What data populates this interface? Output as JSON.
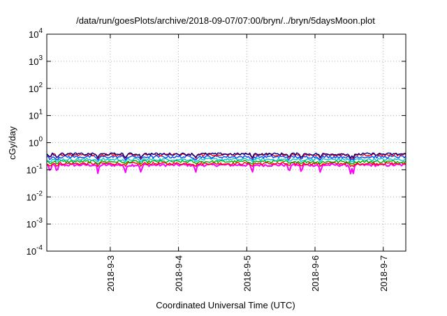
{
  "chart_data": {
    "type": "line",
    "title": "/data/run/goesPlots/archive/2018-09-07/07:00/bryn/../bryn/5daysMoon.plot",
    "xlabel": "Coordinated Universal Time (UTC)",
    "ylabel": "cGy/day",
    "yscale": "log",
    "ylim": [
      0.0001,
      10000
    ],
    "xlim": [
      2.07,
      7.33
    ],
    "x_unit": "day of September 2018",
    "grid": true,
    "xticks": [
      {
        "x": 3,
        "label": "2018-9-3"
      },
      {
        "x": 4,
        "label": "2018-9-4"
      },
      {
        "x": 5,
        "label": "2018-9-5"
      },
      {
        "x": 6,
        "label": "2018-9-6"
      },
      {
        "x": 7,
        "label": "2018-9-7"
      }
    ],
    "yticks": [
      {
        "v": 0.0001,
        "base": "10",
        "exp": "-4"
      },
      {
        "v": 0.001,
        "base": "10",
        "exp": "-3"
      },
      {
        "v": 0.01,
        "base": "10",
        "exp": "-2"
      },
      {
        "v": 0.1,
        "base": "10",
        "exp": "-1"
      },
      {
        "v": 1,
        "base": "10",
        "exp": "0"
      },
      {
        "v": 10,
        "base": "10",
        "exp": "1"
      },
      {
        "v": 100,
        "base": "10",
        "exp": "2"
      },
      {
        "v": 1000,
        "base": "10",
        "exp": "3"
      },
      {
        "v": 10000,
        "base": "10",
        "exp": "4"
      }
    ],
    "series": [
      {
        "color": "#ff00ff",
        "level": 0.15,
        "dip_to": 0.07
      },
      {
        "color": "#ff0000",
        "level": 0.17,
        "dip_to": 0.13
      },
      {
        "color": "#00aa00",
        "level": 0.2,
        "dip_to": 0.16
      },
      {
        "color": "#00c8c8",
        "level": 0.24,
        "dip_to": 0.19
      },
      {
        "color": "#0044ff",
        "level": 0.3,
        "dip_to": 0.22
      },
      {
        "color": "#ff0000",
        "level": 0.36,
        "dip_to": 0.25
      },
      {
        "color": "#000088",
        "level": 0.38,
        "dip_to": 0.27
      }
    ],
    "dip_times": [
      2.12,
      2.22,
      2.82,
      3.22,
      3.45,
      4.25,
      5.08,
      5.62,
      5.8,
      6.08,
      6.52,
      6.56
    ]
  }
}
